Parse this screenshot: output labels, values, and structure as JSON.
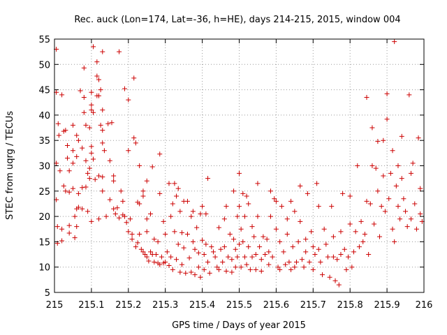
{
  "chart_data": {
    "type": "scatter",
    "title": "Rec. auck (Lon=174, Lat=-36, h=HE), days 214-215, 2015, window 004",
    "xlabel": "GPS time / Days of year 2015",
    "ylabel": "STEC from uqrg / TECUs",
    "xlim": [
      215,
      216
    ],
    "ylim": [
      5,
      55
    ],
    "xticks": [
      215,
      215.1,
      215.2,
      215.3,
      215.4,
      215.5,
      215.6,
      215.7,
      215.8,
      215.9,
      216
    ],
    "xtick_labels": [
      "215",
      "215.1",
      "215.2",
      "215.3",
      "215.4",
      "215.5",
      "215.6",
      "215.7",
      "215.8",
      "215.9",
      "216"
    ],
    "yticks": [
      5,
      10,
      15,
      20,
      25,
      30,
      35,
      40,
      45,
      50,
      55
    ],
    "ytick_labels": [
      "5",
      "10",
      "15",
      "20",
      "25",
      "30",
      "35",
      "40",
      "45",
      "50",
      "55"
    ],
    "grid": true,
    "marker": "plus",
    "color": "#cc0000",
    "legend": "none",
    "points": [
      [
        215.005,
        53.0
      ],
      [
        215.005,
        44.5
      ],
      [
        215.01,
        38.3
      ],
      [
        215.012,
        36.0
      ],
      [
        215.015,
        29.0
      ],
      [
        215.005,
        30.5
      ],
      [
        215.005,
        23.3
      ],
      [
        215.008,
        18.0
      ],
      [
        215.008,
        14.7
      ],
      [
        215.02,
        44.0
      ],
      [
        215.025,
        36.8
      ],
      [
        215.025,
        26.0
      ],
      [
        215.03,
        25.0
      ],
      [
        215.02,
        17.5
      ],
      [
        215.02,
        15.2
      ],
      [
        215.03,
        37.0
      ],
      [
        215.035,
        34.0
      ],
      [
        215.035,
        31.5
      ],
      [
        215.04,
        29.0
      ],
      [
        215.04,
        24.8
      ],
      [
        215.04,
        18.2
      ],
      [
        215.04,
        16.7
      ],
      [
        215.05,
        38.0
      ],
      [
        215.05,
        33.0
      ],
      [
        215.05,
        30.5
      ],
      [
        215.05,
        25.5
      ],
      [
        215.055,
        20.0
      ],
      [
        215.055,
        15.8
      ],
      [
        215.06,
        36.0
      ],
      [
        215.06,
        31.8
      ],
      [
        215.06,
        21.5
      ],
      [
        215.06,
        18.0
      ],
      [
        215.065,
        35.0
      ],
      [
        215.065,
        24.5
      ],
      [
        215.065,
        21.8
      ],
      [
        215.07,
        44.8
      ],
      [
        215.075,
        33.5
      ],
      [
        215.075,
        25.7
      ],
      [
        215.075,
        21.5
      ],
      [
        215.08,
        49.3
      ],
      [
        215.08,
        43.5
      ],
      [
        215.08,
        40.5
      ],
      [
        215.085,
        38.0
      ],
      [
        215.085,
        31.0
      ],
      [
        215.085,
        25.8
      ],
      [
        215.09,
        28.5
      ],
      [
        215.09,
        21.0
      ],
      [
        215.095,
        37.5
      ],
      [
        215.095,
        29.5
      ],
      [
        215.095,
        27.5
      ],
      [
        215.1,
        44.5
      ],
      [
        215.1,
        42.0
      ],
      [
        215.1,
        41.0
      ],
      [
        215.1,
        33.8
      ],
      [
        215.1,
        32.5
      ],
      [
        215.1,
        19.0
      ],
      [
        215.105,
        53.5
      ],
      [
        215.105,
        40.5
      ],
      [
        215.105,
        31.3
      ],
      [
        215.11,
        27.3
      ],
      [
        215.115,
        50.5
      ],
      [
        215.115,
        47.7
      ],
      [
        215.115,
        43.8
      ],
      [
        215.12,
        47.0
      ],
      [
        215.12,
        43.8
      ],
      [
        215.12,
        28.0
      ],
      [
        215.12,
        19.5
      ],
      [
        215.125,
        45.0
      ],
      [
        215.125,
        38.0
      ],
      [
        215.13,
        52.5
      ],
      [
        215.13,
        41.0
      ],
      [
        215.13,
        37.0
      ],
      [
        215.13,
        34.5
      ],
      [
        215.13,
        27.8
      ],
      [
        215.13,
        25.0
      ],
      [
        215.135,
        33.0
      ],
      [
        215.14,
        20.0
      ],
      [
        215.145,
        38.3
      ],
      [
        215.15,
        31.0
      ],
      [
        215.15,
        23.3
      ],
      [
        215.155,
        38.5
      ],
      [
        215.16,
        28.0
      ],
      [
        215.16,
        27.0
      ],
      [
        215.16,
        21.5
      ],
      [
        215.165,
        20.5
      ],
      [
        215.17,
        21.7
      ],
      [
        215.175,
        52.5
      ],
      [
        215.175,
        19.7
      ],
      [
        215.18,
        25.0
      ],
      [
        215.185,
        23.0
      ],
      [
        215.185,
        20.3
      ],
      [
        215.19,
        45.2
      ],
      [
        215.19,
        20.0
      ],
      [
        215.195,
        18.8
      ],
      [
        215.2,
        43.0
      ],
      [
        215.2,
        33.0
      ],
      [
        215.2,
        17.0
      ],
      [
        215.205,
        19.5
      ],
      [
        215.21,
        16.5
      ],
      [
        215.21,
        15.5
      ],
      [
        215.215,
        47.3
      ],
      [
        215.215,
        35.5
      ],
      [
        215.22,
        34.5
      ],
      [
        215.22,
        14.0
      ],
      [
        215.225,
        22.8
      ],
      [
        215.225,
        14.8
      ],
      [
        215.23,
        30.0
      ],
      [
        215.23,
        22.5
      ],
      [
        215.23,
        16.5
      ],
      [
        215.235,
        13.5
      ],
      [
        215.24,
        25.0
      ],
      [
        215.24,
        24.0
      ],
      [
        215.24,
        13.0
      ],
      [
        215.245,
        12.5
      ],
      [
        215.25,
        27.0
      ],
      [
        215.25,
        19.5
      ],
      [
        215.25,
        17.0
      ],
      [
        215.25,
        12.0
      ],
      [
        215.255,
        11.2
      ],
      [
        215.26,
        20.5
      ],
      [
        215.26,
        13.0
      ],
      [
        215.265,
        29.8
      ],
      [
        215.265,
        12.5
      ],
      [
        215.27,
        11.0
      ],
      [
        215.27,
        15.5
      ],
      [
        215.275,
        12.5
      ],
      [
        215.28,
        15.0
      ],
      [
        215.28,
        10.8
      ],
      [
        215.285,
        32.3
      ],
      [
        215.285,
        24.5
      ],
      [
        215.285,
        10.5
      ],
      [
        215.29,
        12.0
      ],
      [
        215.295,
        19.0
      ],
      [
        215.295,
        10.8
      ],
      [
        215.3,
        16.5
      ],
      [
        215.3,
        11.0
      ],
      [
        215.305,
        13.0
      ],
      [
        215.31,
        26.5
      ],
      [
        215.31,
        10.3
      ],
      [
        215.315,
        20.0
      ],
      [
        215.315,
        12.0
      ],
      [
        215.32,
        22.5
      ],
      [
        215.32,
        9.5
      ],
      [
        215.325,
        26.5
      ],
      [
        215.325,
        17.0
      ],
      [
        215.33,
        24.0
      ],
      [
        215.33,
        11.5
      ],
      [
        215.335,
        25.5
      ],
      [
        215.335,
        14.5
      ],
      [
        215.34,
        21.0
      ],
      [
        215.34,
        9.0
      ],
      [
        215.345,
        16.8
      ],
      [
        215.345,
        10.5
      ],
      [
        215.35,
        23.0
      ],
      [
        215.35,
        13.8
      ],
      [
        215.355,
        8.8
      ],
      [
        215.36,
        23.0
      ],
      [
        215.36,
        16.5
      ],
      [
        215.365,
        11.8
      ],
      [
        215.37,
        20.0
      ],
      [
        215.37,
        9.0
      ],
      [
        215.375,
        21.0
      ],
      [
        215.375,
        15.0
      ],
      [
        215.38,
        13.5
      ],
      [
        215.38,
        8.5
      ],
      [
        215.385,
        17.8
      ],
      [
        215.39,
        12.8
      ],
      [
        215.39,
        10.0
      ],
      [
        215.395,
        20.5
      ],
      [
        215.395,
        8.0
      ],
      [
        215.4,
        22.0
      ],
      [
        215.4,
        15.3
      ],
      [
        215.405,
        12.5
      ],
      [
        215.405,
        9.5
      ],
      [
        215.41,
        20.5
      ],
      [
        215.41,
        14.5
      ],
      [
        215.415,
        27.5
      ],
      [
        215.415,
        11.0
      ],
      [
        215.42,
        8.8
      ],
      [
        215.425,
        14.0
      ],
      [
        215.43,
        13.0
      ],
      [
        215.435,
        12.0
      ],
      [
        215.44,
        10.0
      ],
      [
        215.445,
        17.8
      ],
      [
        215.445,
        9.5
      ],
      [
        215.45,
        13.5
      ],
      [
        215.455,
        11.0
      ],
      [
        215.46,
        19.5
      ],
      [
        215.46,
        14.0
      ],
      [
        215.465,
        22.0
      ],
      [
        215.465,
        9.2
      ],
      [
        215.47,
        12.0
      ],
      [
        215.475,
        16.5
      ],
      [
        215.48,
        11.5
      ],
      [
        215.48,
        9.0
      ],
      [
        215.485,
        25.0
      ],
      [
        215.485,
        15.5
      ],
      [
        215.49,
        13.5
      ],
      [
        215.49,
        10.0
      ],
      [
        215.495,
        20.0
      ],
      [
        215.495,
        12.0
      ],
      [
        215.5,
        28.5
      ],
      [
        215.5,
        22.0
      ],
      [
        215.5,
        14.5
      ],
      [
        215.505,
        17.5
      ],
      [
        215.505,
        10.0
      ],
      [
        215.51,
        24.5
      ],
      [
        215.51,
        15.0
      ],
      [
        215.515,
        20.0
      ],
      [
        215.515,
        12.0
      ],
      [
        215.52,
        24.0
      ],
      [
        215.52,
        10.5
      ],
      [
        215.525,
        22.5
      ],
      [
        215.525,
        14.0
      ],
      [
        215.53,
        9.5
      ],
      [
        215.535,
        18.0
      ],
      [
        215.535,
        12.0
      ],
      [
        215.54,
        16.0
      ],
      [
        215.545,
        12.5
      ],
      [
        215.545,
        9.5
      ],
      [
        215.55,
        26.5
      ],
      [
        215.55,
        20.0
      ],
      [
        215.555,
        14.0
      ],
      [
        215.56,
        11.5
      ],
      [
        215.56,
        9.2
      ],
      [
        215.565,
        16.0
      ],
      [
        215.57,
        12.5
      ],
      [
        215.575,
        15.5
      ],
      [
        215.58,
        13.0
      ],
      [
        215.58,
        10.5
      ],
      [
        215.585,
        25.0
      ],
      [
        215.585,
        20.0
      ],
      [
        215.59,
        12.0
      ],
      [
        215.595,
        23.5
      ],
      [
        215.6,
        23.0
      ],
      [
        215.6,
        17.5
      ],
      [
        215.605,
        10.0
      ],
      [
        215.61,
        15.0
      ],
      [
        215.61,
        9.5
      ],
      [
        215.615,
        22.0
      ],
      [
        215.62,
        13.0
      ],
      [
        215.625,
        10.5
      ],
      [
        215.63,
        19.5
      ],
      [
        215.63,
        16.5
      ],
      [
        215.635,
        11.0
      ],
      [
        215.64,
        23.0
      ],
      [
        215.64,
        9.5
      ],
      [
        215.645,
        14.0
      ],
      [
        215.65,
        21.0
      ],
      [
        215.65,
        10.0
      ],
      [
        215.655,
        11.0
      ],
      [
        215.66,
        15.0
      ],
      [
        215.665,
        26.0
      ],
      [
        215.665,
        19.0
      ],
      [
        215.67,
        11.5
      ],
      [
        215.675,
        10.0
      ],
      [
        215.68,
        15.5
      ],
      [
        215.68,
        13.0
      ],
      [
        215.685,
        24.5
      ],
      [
        215.69,
        11.0
      ],
      [
        215.695,
        17.0
      ],
      [
        215.7,
        14.0
      ],
      [
        215.7,
        9.5
      ],
      [
        215.705,
        12.5
      ],
      [
        215.71,
        26.5
      ],
      [
        215.715,
        22.0
      ],
      [
        215.715,
        13.5
      ],
      [
        215.72,
        11.0
      ],
      [
        215.725,
        8.5
      ],
      [
        215.73,
        17.5
      ],
      [
        215.735,
        14.5
      ],
      [
        215.74,
        12.0
      ],
      [
        215.745,
        8.0
      ],
      [
        215.75,
        22.0
      ],
      [
        215.755,
        16.0
      ],
      [
        215.755,
        12.0
      ],
      [
        215.76,
        7.3
      ],
      [
        215.765,
        11.5
      ],
      [
        215.77,
        6.5
      ],
      [
        215.775,
        17.0
      ],
      [
        215.775,
        12.5
      ],
      [
        215.78,
        24.5
      ],
      [
        215.785,
        13.5
      ],
      [
        215.79,
        9.5
      ],
      [
        215.795,
        12.0
      ],
      [
        215.8,
        24.0
      ],
      [
        215.8,
        18.5
      ],
      [
        215.805,
        10.0
      ],
      [
        215.81,
        13.0
      ],
      [
        215.815,
        17.0
      ],
      [
        215.82,
        30.0
      ],
      [
        215.825,
        14.0
      ],
      [
        215.83,
        19.0
      ],
      [
        215.835,
        15.0
      ],
      [
        215.84,
        16.5
      ],
      [
        215.845,
        43.5
      ],
      [
        215.845,
        23.0
      ],
      [
        215.85,
        12.5
      ],
      [
        215.855,
        22.5
      ],
      [
        215.86,
        30.0
      ],
      [
        215.86,
        37.5
      ],
      [
        215.865,
        18.5
      ],
      [
        215.87,
        29.5
      ],
      [
        215.875,
        34.8
      ],
      [
        215.875,
        25.0
      ],
      [
        215.88,
        16.0
      ],
      [
        215.885,
        22.0
      ],
      [
        215.89,
        28.0
      ],
      [
        215.89,
        35.0
      ],
      [
        215.895,
        21.0
      ],
      [
        215.9,
        39.2
      ],
      [
        215.9,
        44.2
      ],
      [
        215.905,
        23.5
      ],
      [
        215.91,
        28.5
      ],
      [
        215.915,
        33.0
      ],
      [
        215.915,
        17.5
      ],
      [
        215.92,
        54.5
      ],
      [
        215.92,
        15.0
      ],
      [
        215.925,
        26.0
      ],
      [
        215.93,
        30.0
      ],
      [
        215.93,
        22.0
      ],
      [
        215.935,
        19.5
      ],
      [
        215.94,
        35.8
      ],
      [
        215.94,
        27.5
      ],
      [
        215.945,
        23.5
      ],
      [
        215.95,
        21.0
      ],
      [
        215.955,
        18.0
      ],
      [
        215.96,
        44.0
      ],
      [
        215.965,
        28.5
      ],
      [
        215.965,
        19.5
      ],
      [
        215.97,
        30.5
      ],
      [
        215.975,
        22.5
      ],
      [
        215.98,
        17.5
      ],
      [
        215.985,
        35.5
      ],
      [
        215.99,
        25.5
      ],
      [
        215.99,
        20.5
      ],
      [
        215.995,
        19.0
      ]
    ]
  }
}
